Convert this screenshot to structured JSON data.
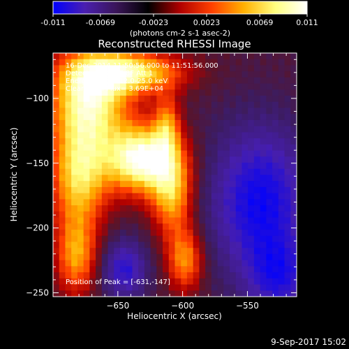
{
  "chart_data": {
    "type": "heatmap",
    "title": "Reconstructed RHESSI Image",
    "xlabel": "Heliocentric X (arcsec)",
    "ylabel": "Heliocentric Y (arcsec)",
    "xlim": [
      -700,
      -512
    ],
    "ylim": [
      -253,
      -65
    ],
    "x_ticks": [
      -650,
      -600,
      -550
    ],
    "y_ticks": [
      -100,
      -150,
      -200,
      -250
    ],
    "colorbar": {
      "range": [
        -0.011,
        0.011
      ],
      "tick_values": [
        -0.011,
        -0.0069,
        -0.0023,
        0.0023,
        0.0069,
        0.011
      ],
      "tick_labels": [
        "-0.011",
        "-0.0069",
        "-0.0023",
        "0.0023",
        "0.0069",
        "0.011"
      ],
      "unit_label": "(photons cm-2 s-1 asec-2)",
      "colors": [
        "#0000ff",
        "#4a1fb0",
        "#3a1558",
        "#000000",
        "#b00000",
        "#ff4000",
        "#ffb000",
        "#ffff80",
        "#ffffff"
      ]
    },
    "annotations": [
      "16-Dec-2014 11:50:56.000 to 11:51:56.000",
      "Detectors: 3F 6F 8F  Att 1",
      "Energy Range: 12.0-25.0 keV",
      "Clean    Total Flux= 3.69E+04"
    ],
    "peak_label": "Position of Peak = [-631,-147]",
    "peak": [
      -631,
      -147
    ]
  },
  "footer": {
    "date": "9-Sep-2017 15:02"
  }
}
